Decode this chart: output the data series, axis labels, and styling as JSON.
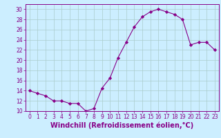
{
  "x": [
    0,
    1,
    2,
    3,
    4,
    5,
    6,
    7,
    8,
    9,
    10,
    11,
    12,
    13,
    14,
    15,
    16,
    17,
    18,
    19,
    20,
    21,
    22,
    23
  ],
  "y": [
    14,
    13.5,
    13,
    12,
    12,
    11.5,
    11.5,
    10,
    10.5,
    14.5,
    16.5,
    20.5,
    23.5,
    26.5,
    28.5,
    29.5,
    30,
    29.5,
    29,
    28,
    23,
    23.5,
    23.5,
    22
  ],
  "line_color": "#880088",
  "marker": "D",
  "marker_size": 2.2,
  "background_color": "#cceeff",
  "grid_color": "#aacccc",
  "xlabel": "Windchill (Refroidissement éolien,°C)",
  "xlabel_color": "#880088",
  "ylim": [
    10,
    31
  ],
  "xlim": [
    -0.5,
    23.5
  ],
  "yticks": [
    10,
    12,
    14,
    16,
    18,
    20,
    22,
    24,
    26,
    28,
    30
  ],
  "xticks": [
    0,
    1,
    2,
    3,
    4,
    5,
    6,
    7,
    8,
    9,
    10,
    11,
    12,
    13,
    14,
    15,
    16,
    17,
    18,
    19,
    20,
    21,
    22,
    23
  ],
  "tick_color": "#880088",
  "tick_fontsize": 5.5,
  "xlabel_fontsize": 7.0,
  "spine_color": "#880088"
}
